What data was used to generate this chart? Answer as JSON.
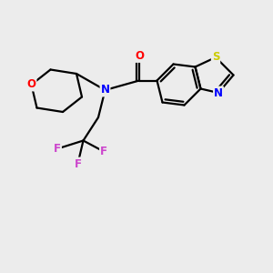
{
  "background_color": "#ececec",
  "atom_colors": {
    "O": "#ff0000",
    "N": "#0000ff",
    "S": "#cccc00",
    "F": "#cc44cc",
    "C": "#000000"
  },
  "line_color": "#000000",
  "line_width": 1.6,
  "figsize": [
    3.0,
    3.0
  ],
  "dpi": 100,
  "xlim": [
    0,
    10
  ],
  "ylim": [
    0,
    10
  ]
}
